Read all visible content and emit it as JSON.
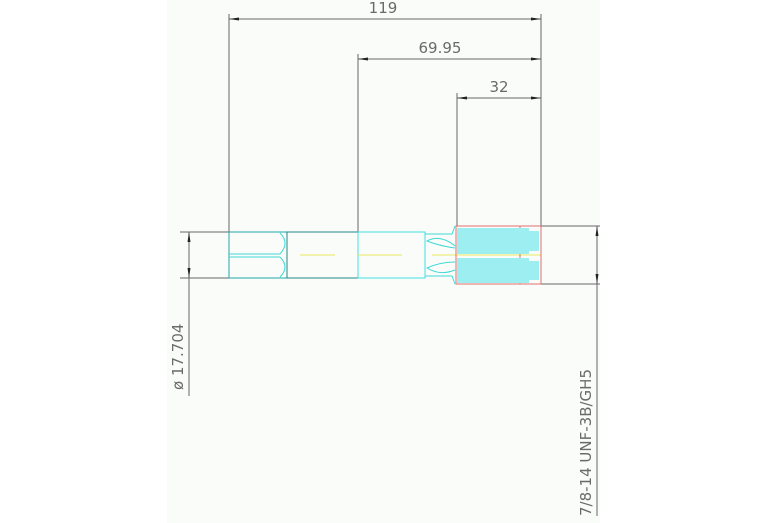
{
  "drawing": {
    "dimensions": {
      "overall_length": "119",
      "shank_length": "69.95",
      "thread_length": "32",
      "shank_diameter": "ø 17.704",
      "thread_spec": "7/8-14 UNF-3B/GH5"
    },
    "colors": {
      "background": "#fafcfa",
      "dimension": "#555555",
      "outline": "#30c8c8",
      "thread": "#40e0e8",
      "centerline": "#e8e860",
      "thread_edge": "#e06060"
    }
  }
}
